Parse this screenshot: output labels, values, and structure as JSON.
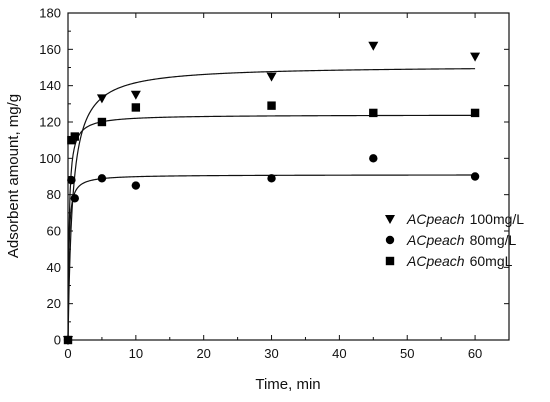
{
  "chart_data": {
    "type": "scatter",
    "title": "",
    "xlabel": "Time, min",
    "ylabel": "Adsorbent amount, mg/g",
    "xlim": [
      0,
      65
    ],
    "ylim": [
      0,
      180
    ],
    "xticks": [
      0,
      10,
      20,
      30,
      40,
      50,
      60
    ],
    "yticks": [
      0,
      20,
      40,
      60,
      80,
      100,
      120,
      140,
      160,
      180
    ],
    "grid": false,
    "legend_position": "right-center",
    "series": [
      {
        "name_italic": "ACpeach",
        "name_rest": "100mg/L",
        "marker": "triangle-down",
        "color": "#000000",
        "x": [
          0,
          5,
          10,
          30,
          45,
          60
        ],
        "y": [
          0,
          133,
          135,
          145,
          162,
          156
        ],
        "fit_qe": 151,
        "fit_k2": 0.01
      },
      {
        "name_italic": "ACpeach",
        "name_rest": "80mg/L",
        "marker": "circle",
        "color": "#000000",
        "x": [
          0,
          0.5,
          1,
          5,
          10,
          30,
          45,
          60
        ],
        "y": [
          0,
          88,
          78,
          89,
          85,
          89,
          100,
          90
        ],
        "fit_qe": 91,
        "fit_k2": 0.09
      },
      {
        "name_italic": "ACpeach",
        "name_rest": "60mgL",
        "marker": "square",
        "color": "#000000",
        "x": [
          0,
          0.5,
          1,
          5,
          10,
          30,
          45,
          60
        ],
        "y": [
          0,
          110,
          112,
          120,
          128,
          129,
          125,
          125
        ],
        "fit_qe": 124,
        "fit_k2": 0.05
      }
    ]
  }
}
